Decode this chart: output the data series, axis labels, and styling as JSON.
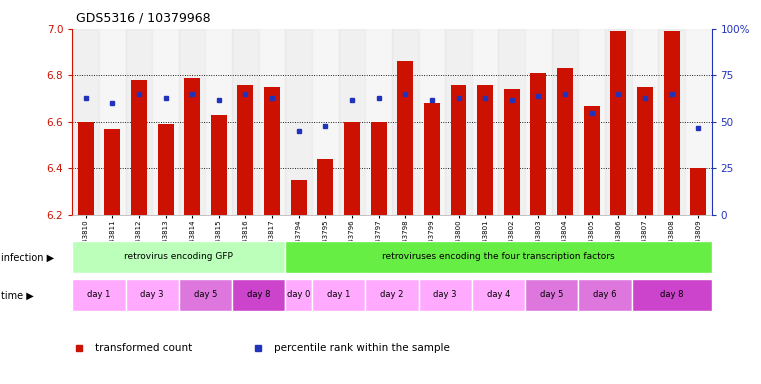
{
  "title": "GDS5316 / 10379968",
  "samples": [
    "GSM943810",
    "GSM943811",
    "GSM943812",
    "GSM943813",
    "GSM943814",
    "GSM943815",
    "GSM943816",
    "GSM943817",
    "GSM943794",
    "GSM943795",
    "GSM943796",
    "GSM943797",
    "GSM943798",
    "GSM943799",
    "GSM943800",
    "GSM943801",
    "GSM943802",
    "GSM943803",
    "GSM943804",
    "GSM943805",
    "GSM943806",
    "GSM943807",
    "GSM943808",
    "GSM943809"
  ],
  "red_values": [
    6.6,
    6.57,
    6.78,
    6.59,
    6.79,
    6.63,
    6.76,
    6.75,
    6.35,
    6.44,
    6.6,
    6.6,
    6.86,
    6.68,
    6.76,
    6.76,
    6.74,
    6.81,
    6.83,
    6.67,
    6.99,
    6.75,
    6.99,
    6.4
  ],
  "blue_percentiles": [
    63,
    60,
    65,
    63,
    65,
    62,
    65,
    63,
    45,
    48,
    62,
    63,
    65,
    62,
    63,
    63,
    62,
    64,
    65,
    55,
    65,
    63,
    65,
    47
  ],
  "ylim_left": [
    6.2,
    7.0
  ],
  "ylim_right": [
    0,
    100
  ],
  "yticks_left": [
    6.2,
    6.4,
    6.6,
    6.8,
    7.0
  ],
  "yticks_right": [
    0,
    25,
    50,
    75,
    100
  ],
  "ytick_labels_right": [
    "0",
    "25",
    "50",
    "75",
    "100%"
  ],
  "bar_color": "#cc1100",
  "dot_color": "#2233bb",
  "base_value": 6.2,
  "infection_groups": [
    {
      "label": "retrovirus encoding GFP",
      "start": 0,
      "end": 8,
      "color": "#bbffbb"
    },
    {
      "label": "retroviruses encoding the four transcription factors",
      "start": 8,
      "end": 24,
      "color": "#66ee44"
    }
  ],
  "time_groups": [
    {
      "label": "day 1",
      "start": 0,
      "end": 2,
      "color": "#ffaaff"
    },
    {
      "label": "day 3",
      "start": 2,
      "end": 4,
      "color": "#ffaaff"
    },
    {
      "label": "day 5",
      "start": 4,
      "end": 6,
      "color": "#dd77dd"
    },
    {
      "label": "day 8",
      "start": 6,
      "end": 8,
      "color": "#cc44cc"
    },
    {
      "label": "day 0",
      "start": 8,
      "end": 9,
      "color": "#ffaaff"
    },
    {
      "label": "day 1",
      "start": 9,
      "end": 11,
      "color": "#ffaaff"
    },
    {
      "label": "day 2",
      "start": 11,
      "end": 13,
      "color": "#ffaaff"
    },
    {
      "label": "day 3",
      "start": 13,
      "end": 15,
      "color": "#ffaaff"
    },
    {
      "label": "day 4",
      "start": 15,
      "end": 17,
      "color": "#ffaaff"
    },
    {
      "label": "day 5",
      "start": 17,
      "end": 19,
      "color": "#dd77dd"
    },
    {
      "label": "day 6",
      "start": 19,
      "end": 21,
      "color": "#dd77dd"
    },
    {
      "label": "day 8",
      "start": 21,
      "end": 24,
      "color": "#cc44cc"
    }
  ],
  "legend_items": [
    {
      "label": "transformed count",
      "color": "#cc1100"
    },
    {
      "label": "percentile rank within the sample",
      "color": "#2233bb"
    }
  ],
  "axis_color_left": "#cc1100",
  "axis_color_right": "#2233bb",
  "bg_color": "#ffffff"
}
